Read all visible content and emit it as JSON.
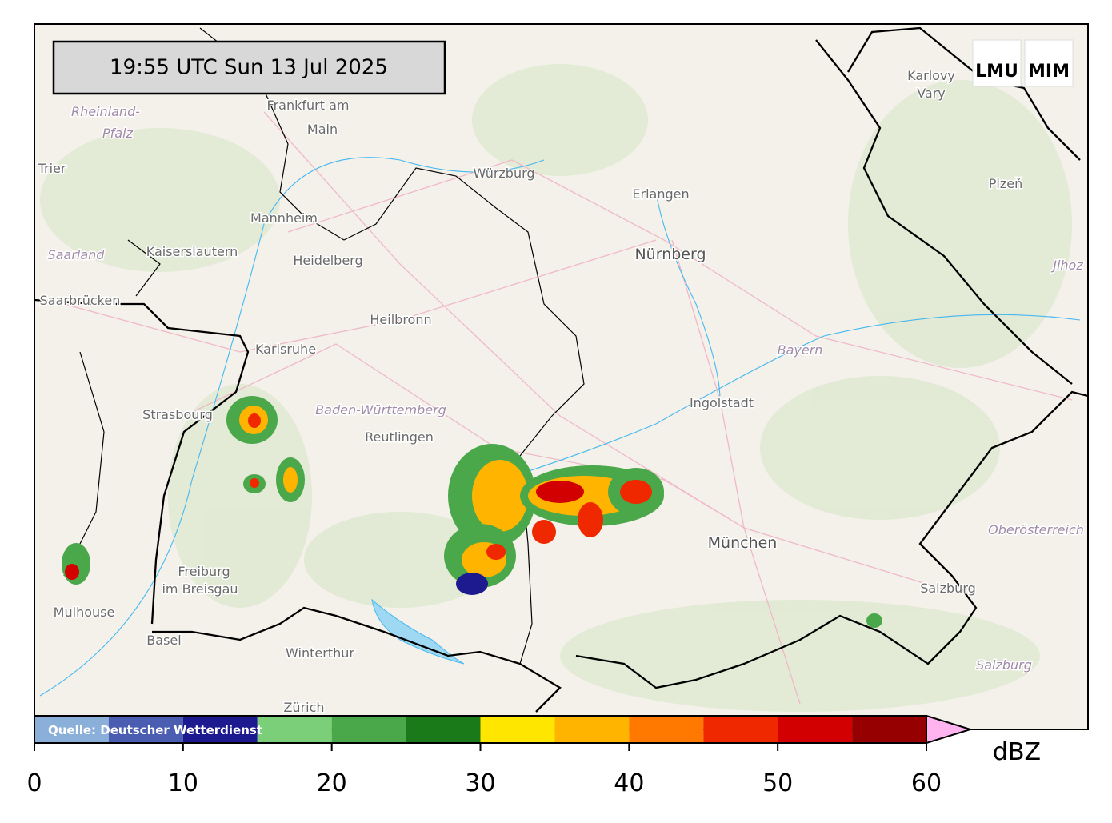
{
  "header": {
    "timestamp": "19:55 UTC  Sun 13 Jul 2025"
  },
  "logos": [
    "LMU",
    "MIM"
  ],
  "source": "Quelle: Deutscher Wetterdienst",
  "map_labels": [
    "Frankfurt am",
    "Main",
    "Rheinland-",
    "Pfalz",
    "Trier",
    "Würzburg",
    "Erlangen",
    "Nürnberg",
    "Karlovy",
    "Vary",
    "Plzeň",
    "Mannheim",
    "Kaiserslautern",
    "Heidelberg",
    "Saarland",
    "Saarbrücken",
    "Heilbronn",
    "Karlsruhe",
    "Bayern",
    "Ingolstadt",
    "Strasbourg",
    "Baden-Württemberg",
    "Reutlingen",
    "München",
    "Oberösterreich",
    "Freiburg",
    "im Breisgau",
    "Mulhouse",
    "Basel",
    "Winterthur",
    "Salzburg",
    "Salzburg",
    "Zürich",
    "Jihoz"
  ],
  "colorbar": {
    "unit": "dBZ",
    "lim": [
      0,
      60
    ],
    "ticks": [
      0,
      10,
      20,
      30,
      40,
      50,
      60
    ],
    "bounds": [
      0,
      5,
      10,
      15,
      20,
      25,
      30,
      35,
      40,
      45,
      50,
      55,
      60
    ],
    "colors": [
      "#8aafd9",
      "#4a5db0",
      "#1c1a8e",
      "#7ccf79",
      "#4aa84a",
      "#1a7a1a",
      "#ffe600",
      "#ffb400",
      "#ff7800",
      "#f02800",
      "#d20000",
      "#960000"
    ],
    "extend_color": "#ffb4f0"
  }
}
